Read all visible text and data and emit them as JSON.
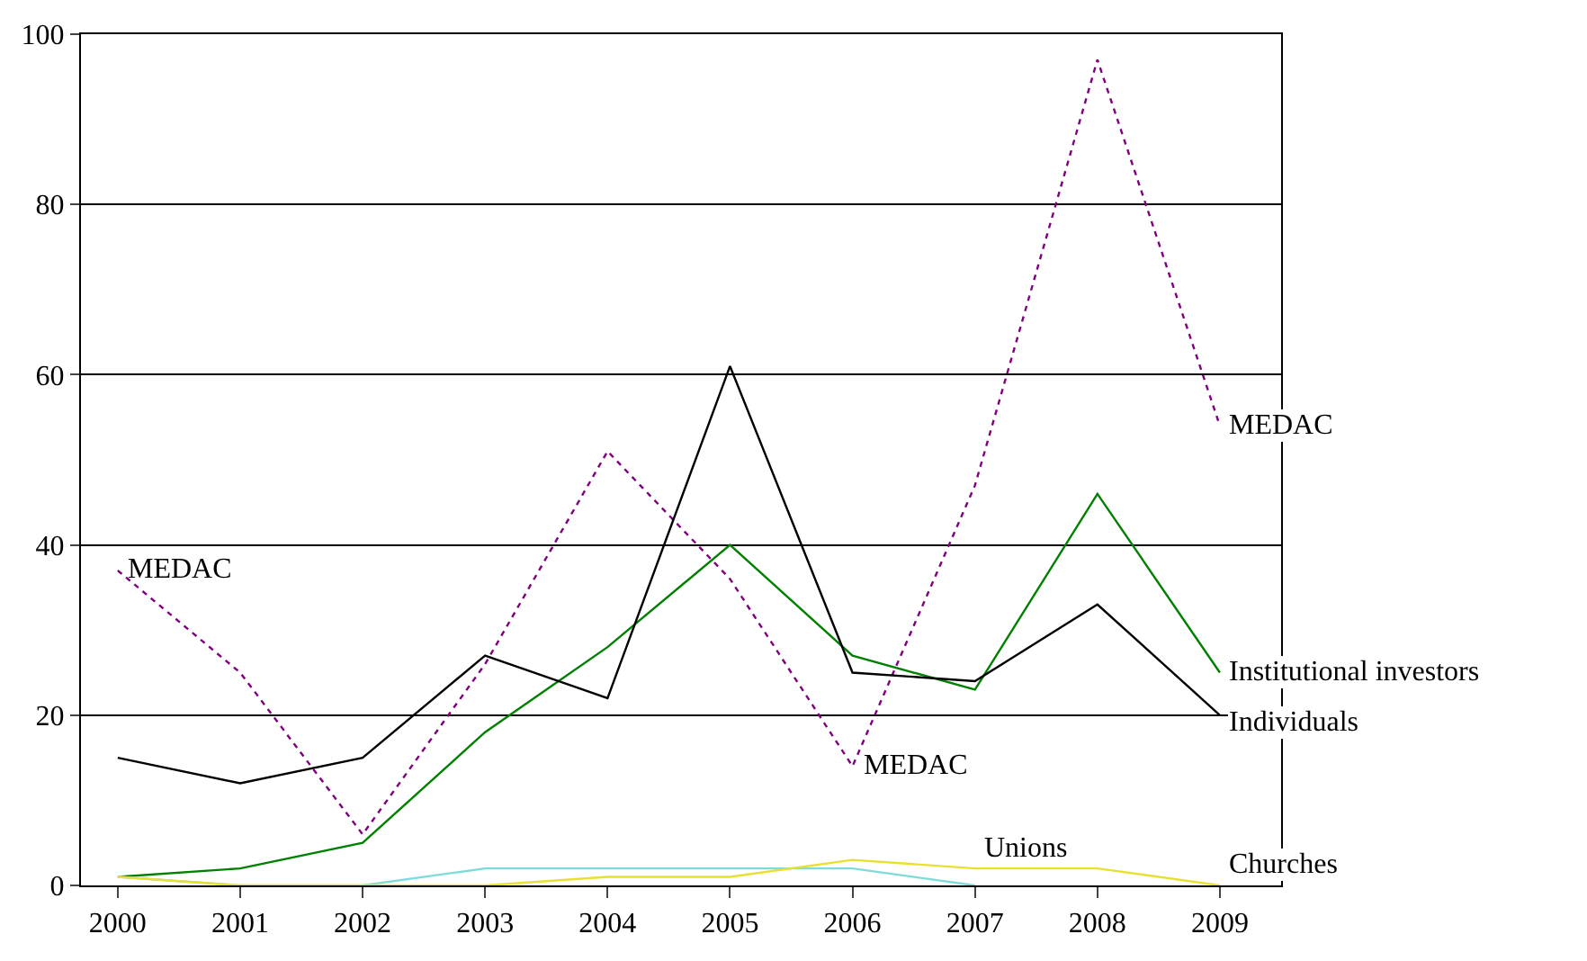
{
  "chart_data": {
    "type": "line",
    "categories": [
      "2000",
      "2001",
      "2002",
      "2003",
      "2004",
      "2005",
      "2006",
      "2007",
      "2008",
      "2009"
    ],
    "series": [
      {
        "name": "MEDAC",
        "color": "#800080",
        "line_style": "dotted",
        "values": [
          37,
          25,
          6,
          26,
          51,
          36,
          14,
          47,
          97,
          54
        ]
      },
      {
        "name": "Institutional investors",
        "color": "#008000",
        "values": [
          1,
          2,
          5,
          18,
          28,
          40,
          27,
          23,
          46,
          25
        ]
      },
      {
        "name": "Individuals",
        "color": "#000000",
        "values": [
          15,
          12,
          15,
          27,
          22,
          61,
          25,
          24,
          33,
          20
        ]
      },
      {
        "name": "Unions",
        "color": "#7fdbd8",
        "values": [
          1,
          0,
          0,
          2,
          2,
          2,
          2,
          0,
          null,
          null
        ]
      },
      {
        "name": "Churches",
        "color": "#e8e030",
        "values": [
          1,
          0,
          0,
          0,
          1,
          1,
          3,
          2,
          2,
          0
        ]
      }
    ],
    "annotations": [
      {
        "text": "MEDAC",
        "x": "2000",
        "y": 37
      },
      {
        "text": "MEDAC",
        "x": "2006",
        "y": 14
      }
    ],
    "ylim": [
      0,
      100
    ],
    "yticks": [
      0,
      20,
      40,
      60,
      80,
      100
    ],
    "grid": "y",
    "legend": false,
    "marker": "none",
    "line_style": "solid"
  }
}
